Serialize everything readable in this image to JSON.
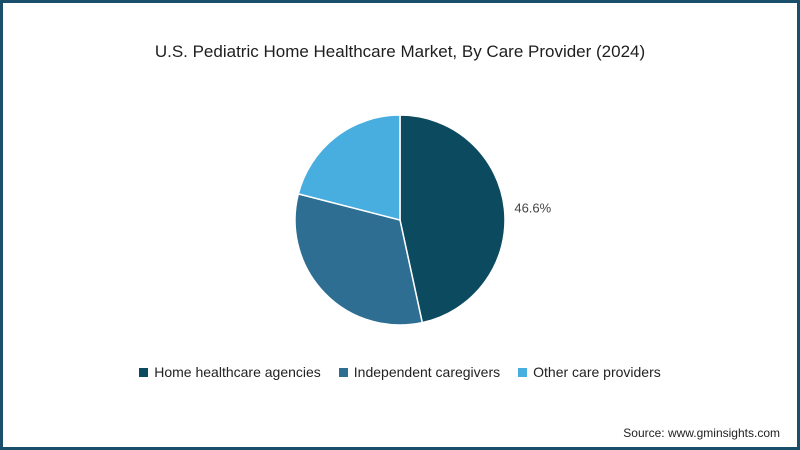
{
  "chart_data": {
    "type": "pie",
    "title": "U.S. Pediatric Home Healthcare Market, By Care Provider (2024)",
    "slices": [
      {
        "name": "Home healthcare agencies",
        "value": 46.6,
        "color": "#0b4a5f",
        "label": "46.6%"
      },
      {
        "name": "Independent caregivers",
        "value": 32.4,
        "color": "#2e6e92",
        "label": ""
      },
      {
        "name": "Other care providers",
        "value": 21.0,
        "color": "#48aee0",
        "label": ""
      }
    ],
    "legend": "bottom"
  },
  "source": "Source: www.gminsights.com",
  "colors": {
    "border": "#1a4f6b",
    "background": "#ffffff"
  }
}
